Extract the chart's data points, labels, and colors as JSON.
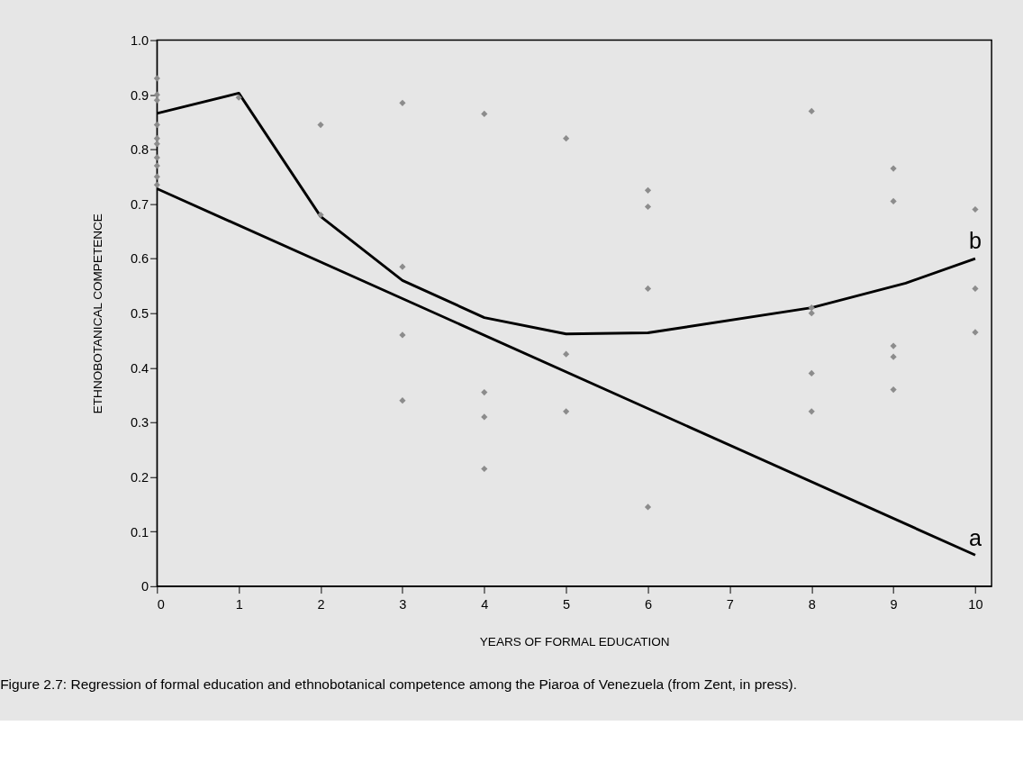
{
  "chart_data": {
    "type": "scatter",
    "xlabel": "YEARS OF FORMAL EDUCATION",
    "ylabel": "ETHNOBOTANICAL COMPETENCE",
    "xlim": [
      0,
      10.2
    ],
    "xticks": [
      0,
      1,
      2,
      3,
      4,
      5,
      6,
      7,
      8,
      9,
      10
    ],
    "ylim": [
      0,
      1
    ],
    "yticks": [
      0,
      0.1,
      0.2,
      0.3,
      0.4,
      0.5,
      0.6,
      0.7,
      0.8,
      0.9,
      {
        "value": 1,
        "label": "1.0"
      }
    ],
    "grid": false,
    "series": [
      {
        "marker": "diamond",
        "color": "#8c8c8c",
        "x": [
          0,
          0,
          0,
          0,
          0,
          0,
          0,
          0,
          0,
          0,
          1,
          2,
          2,
          3,
          3,
          3,
          3,
          4,
          4,
          4,
          4,
          5,
          5,
          5,
          6,
          6,
          6,
          6,
          8,
          8,
          8,
          8,
          8,
          9,
          9,
          9,
          9,
          9,
          10,
          10,
          10
        ],
        "values": [
          0.93,
          0.9,
          0.89,
          0.845,
          0.82,
          0.81,
          0.785,
          0.77,
          0.75,
          0.735,
          0.895,
          0.845,
          0.68,
          0.885,
          0.585,
          0.46,
          0.34,
          0.865,
          0.355,
          0.31,
          0.215,
          0.82,
          0.425,
          0.32,
          0.725,
          0.695,
          0.545,
          0.145,
          0.87,
          0.51,
          0.5,
          0.39,
          0.32,
          0.765,
          0.705,
          0.44,
          0.42,
          0.36,
          0.69,
          0.545,
          0.465
        ]
      },
      {
        "type": "line",
        "marker": "none",
        "line_style": "solid",
        "color": "#000000",
        "x": [
          0,
          10
        ],
        "values": [
          0.728,
          0.057
        ]
      },
      {
        "type": "line",
        "marker": "none",
        "line_style": "solid",
        "color": "#000000",
        "x": [
          0,
          1,
          2,
          3,
          4,
          5,
          6,
          8,
          9.15,
          10
        ],
        "values": [
          0.866,
          0.903,
          0.677,
          0.56,
          0.492,
          0.462,
          0.464,
          0.51,
          0.555,
          0.6
        ]
      }
    ],
    "annotations": [
      {
        "text": "a",
        "x": 10,
        "y": 0.057
      },
      {
        "text": "b",
        "x": 10,
        "y": 0.6
      },
      "Figure 2.7: Regression of formal education and ethnobotanical competence among the Piaroa of Venezuela (from Zent, in press)."
    ]
  }
}
